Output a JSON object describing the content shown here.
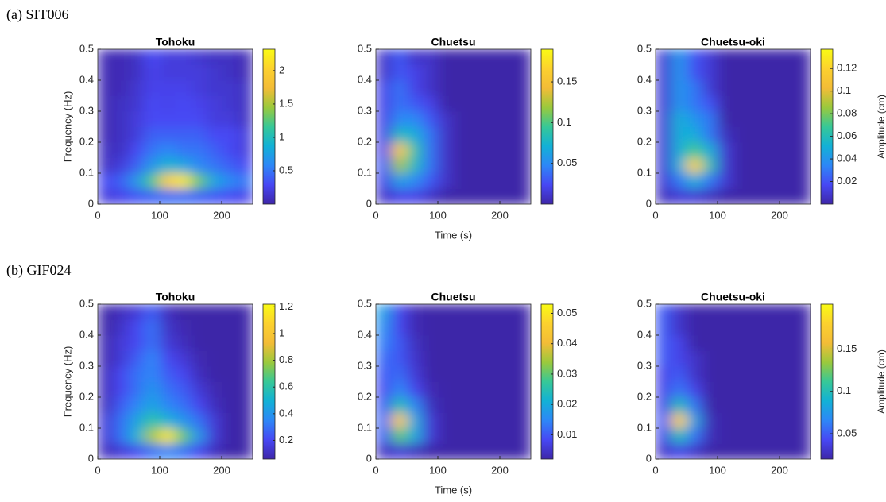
{
  "row_labels": [
    "(a)   SIT006",
    "(b)   GIF024"
  ],
  "chart_data": [
    {
      "type": "heatmap",
      "title": "Tohoku",
      "ylabel": "Frequency (Hz)",
      "x": [
        12.5,
        37.5,
        62.5,
        87.5,
        112.5,
        137.5,
        162.5,
        187.5,
        212.5,
        237.5
      ],
      "y": [
        0.025,
        0.075,
        0.125,
        0.175,
        0.225,
        0.275,
        0.325,
        0.375,
        0.425,
        0.475
      ],
      "z": [
        [
          0.2,
          0.25,
          0.35,
          0.4,
          0.45,
          0.45,
          0.4,
          0.35,
          0.3,
          0.25
        ],
        [
          0.3,
          0.4,
          0.7,
          1.2,
          2.0,
          2.2,
          1.3,
          0.8,
          0.6,
          0.5
        ],
        [
          0.1,
          0.2,
          0.4,
          0.7,
          0.9,
          0.8,
          0.6,
          0.5,
          0.4,
          0.3
        ],
        [
          0.1,
          0.1,
          0.3,
          0.5,
          0.6,
          0.5,
          0.5,
          0.4,
          0.3,
          0.2
        ],
        [
          0.05,
          0.1,
          0.2,
          0.4,
          0.4,
          0.4,
          0.4,
          0.3,
          0.3,
          0.2
        ],
        [
          0.05,
          0.1,
          0.2,
          0.3,
          0.3,
          0.3,
          0.3,
          0.2,
          0.2,
          0.1
        ],
        [
          0.05,
          0.1,
          0.15,
          0.3,
          0.25,
          0.3,
          0.25,
          0.2,
          0.15,
          0.1
        ],
        [
          0.05,
          0.05,
          0.15,
          0.25,
          0.25,
          0.25,
          0.2,
          0.15,
          0.15,
          0.1
        ],
        [
          0.05,
          0.05,
          0.1,
          0.25,
          0.2,
          0.2,
          0.2,
          0.15,
          0.1,
          0.05
        ],
        [
          0.05,
          0.05,
          0.1,
          0.3,
          0.2,
          0.2,
          0.15,
          0.1,
          0.1,
          0.05
        ]
      ],
      "xlim": [
        0,
        250
      ],
      "xticks": [
        0,
        100,
        200
      ],
      "ylim": [
        0,
        0.5
      ],
      "yticks": [
        0,
        0.1,
        0.2,
        0.3,
        0.4,
        0.5
      ],
      "zlim": [
        0,
        2.32
      ],
      "zticks": [
        0.5,
        1,
        1.5,
        2
      ]
    },
    {
      "type": "heatmap",
      "title": "Chuetsu",
      "xlabel": "Time (s)",
      "x": [
        12.5,
        37.5,
        62.5,
        87.5,
        112.5,
        137.5,
        162.5,
        187.5,
        212.5,
        237.5
      ],
      "y": [
        0.025,
        0.075,
        0.125,
        0.175,
        0.225,
        0.275,
        0.325,
        0.375,
        0.425,
        0.475
      ],
      "z": [
        [
          0.01,
          0.02,
          0.02,
          0.01,
          0,
          0,
          0,
          0,
          0,
          0
        ],
        [
          0.02,
          0.06,
          0.05,
          0.03,
          0.01,
          0,
          0,
          0,
          0,
          0
        ],
        [
          0.03,
          0.12,
          0.08,
          0.04,
          0.01,
          0,
          0,
          0,
          0,
          0
        ],
        [
          0.02,
          0.16,
          0.09,
          0.04,
          0.01,
          0,
          0,
          0,
          0,
          0
        ],
        [
          0.02,
          0.08,
          0.07,
          0.04,
          0.01,
          0,
          0,
          0,
          0,
          0
        ],
        [
          0.02,
          0.05,
          0.05,
          0.03,
          0.01,
          0,
          0,
          0,
          0,
          0
        ],
        [
          0.02,
          0.04,
          0.03,
          0.02,
          0,
          0,
          0,
          0,
          0,
          0
        ],
        [
          0.02,
          0.04,
          0.02,
          0.01,
          0,
          0,
          0,
          0,
          0,
          0
        ],
        [
          0.01,
          0.03,
          0.02,
          0.01,
          0,
          0,
          0,
          0,
          0,
          0
        ],
        [
          0.01,
          0.03,
          0.01,
          0.01,
          0,
          0,
          0,
          0,
          0,
          0
        ]
      ],
      "xlim": [
        0,
        250
      ],
      "xticks": [
        0,
        100,
        200
      ],
      "ylim": [
        0,
        0.5
      ],
      "yticks": [
        0,
        0.1,
        0.2,
        0.3,
        0.4,
        0.5
      ],
      "zlim": [
        0,
        0.19
      ],
      "zticks": [
        0.05,
        0.1,
        0.15
      ]
    },
    {
      "type": "heatmap",
      "title": "Chuetsu-oki",
      "zlabel": "Amplitude (cm)",
      "x": [
        12.5,
        37.5,
        62.5,
        87.5,
        112.5,
        137.5,
        162.5,
        187.5,
        212.5,
        237.5
      ],
      "y": [
        0.025,
        0.075,
        0.125,
        0.175,
        0.225,
        0.275,
        0.325,
        0.375,
        0.425,
        0.475
      ],
      "z": [
        [
          0.005,
          0.01,
          0.01,
          0.005,
          0,
          0,
          0,
          0,
          0,
          0
        ],
        [
          0.01,
          0.03,
          0.05,
          0.03,
          0.01,
          0,
          0,
          0,
          0,
          0
        ],
        [
          0.01,
          0.05,
          0.12,
          0.06,
          0.01,
          0,
          0,
          0,
          0,
          0
        ],
        [
          0.01,
          0.05,
          0.07,
          0.05,
          0.01,
          0,
          0,
          0,
          0,
          0
        ],
        [
          0.01,
          0.05,
          0.05,
          0.03,
          0.005,
          0,
          0,
          0,
          0,
          0
        ],
        [
          0.01,
          0.05,
          0.04,
          0.03,
          0,
          0,
          0,
          0,
          0,
          0
        ],
        [
          0.01,
          0.04,
          0.03,
          0.02,
          0,
          0,
          0,
          0,
          0,
          0
        ],
        [
          0.01,
          0.04,
          0.03,
          0.01,
          0,
          0,
          0,
          0,
          0,
          0
        ],
        [
          0.01,
          0.04,
          0.02,
          0.01,
          0,
          0,
          0,
          0,
          0,
          0
        ],
        [
          0.01,
          0.04,
          0.02,
          0.01,
          0,
          0,
          0,
          0,
          0,
          0
        ]
      ],
      "xlim": [
        0,
        250
      ],
      "xticks": [
        0,
        100,
        200
      ],
      "ylim": [
        0,
        0.5
      ],
      "yticks": [
        0,
        0.1,
        0.2,
        0.3,
        0.4,
        0.5
      ],
      "zlim": [
        0,
        0.137
      ],
      "zticks": [
        0.02,
        0.04,
        0.06,
        0.08,
        0.1,
        0.12
      ]
    },
    {
      "type": "heatmap",
      "title": "Tohoku",
      "ylabel": "Frequency (Hz)",
      "x": [
        12.5,
        37.5,
        62.5,
        87.5,
        112.5,
        137.5,
        162.5,
        187.5,
        212.5,
        237.5
      ],
      "y": [
        0.025,
        0.075,
        0.125,
        0.175,
        0.225,
        0.275,
        0.325,
        0.375,
        0.425,
        0.475
      ],
      "z": [
        [
          0.1,
          0.15,
          0.2,
          0.3,
          0.35,
          0.3,
          0.2,
          0.1,
          0.06,
          0.06
        ],
        [
          0.15,
          0.3,
          0.5,
          0.8,
          1.15,
          0.7,
          0.4,
          0.15,
          0.06,
          0.06
        ],
        [
          0.15,
          0.3,
          0.45,
          0.6,
          0.5,
          0.4,
          0.3,
          0.15,
          0.06,
          0.06
        ],
        [
          0.1,
          0.25,
          0.35,
          0.45,
          0.35,
          0.3,
          0.2,
          0.1,
          0.06,
          0.06
        ],
        [
          0.1,
          0.2,
          0.3,
          0.4,
          0.3,
          0.25,
          0.15,
          0.08,
          0.06,
          0.06
        ],
        [
          0.1,
          0.2,
          0.3,
          0.35,
          0.25,
          0.2,
          0.1,
          0.06,
          0.06,
          0.06
        ],
        [
          0.08,
          0.15,
          0.25,
          0.35,
          0.2,
          0.15,
          0.08,
          0.06,
          0.06,
          0.06
        ],
        [
          0.08,
          0.15,
          0.2,
          0.3,
          0.15,
          0.1,
          0.06,
          0.06,
          0.06,
          0.06
        ],
        [
          0.06,
          0.12,
          0.2,
          0.3,
          0.12,
          0.08,
          0.06,
          0.06,
          0.06,
          0.06
        ],
        [
          0.06,
          0.1,
          0.15,
          0.25,
          0.1,
          0.06,
          0.06,
          0.06,
          0.06,
          0.06
        ]
      ],
      "xlim": [
        0,
        250
      ],
      "xticks": [
        0,
        100,
        200
      ],
      "ylim": [
        0,
        0.5
      ],
      "yticks": [
        0,
        0.1,
        0.2,
        0.3,
        0.4,
        0.5
      ],
      "zlim": [
        0.06,
        1.22
      ],
      "zticks": [
        0.2,
        0.4,
        0.6,
        0.8,
        1,
        1.2
      ]
    },
    {
      "type": "heatmap",
      "title": "Chuetsu",
      "xlabel": "Time (s)",
      "x": [
        12.5,
        37.5,
        62.5,
        87.5,
        112.5,
        137.5,
        162.5,
        187.5,
        212.5,
        237.5
      ],
      "y": [
        0.025,
        0.075,
        0.125,
        0.175,
        0.225,
        0.275,
        0.325,
        0.375,
        0.425,
        0.475
      ],
      "z": [
        [
          0.004,
          0.006,
          0.004,
          0.002,
          0.002,
          0.002,
          0.002,
          0.002,
          0.002,
          0.002
        ],
        [
          0.01,
          0.03,
          0.02,
          0.006,
          0.002,
          0.002,
          0.002,
          0.002,
          0.002,
          0.002
        ],
        [
          0.012,
          0.045,
          0.02,
          0.006,
          0.002,
          0.002,
          0.002,
          0.002,
          0.002,
          0.002
        ],
        [
          0.01,
          0.025,
          0.015,
          0.004,
          0.002,
          0.002,
          0.002,
          0.002,
          0.002,
          0.002
        ],
        [
          0.008,
          0.015,
          0.008,
          0.003,
          0.002,
          0.002,
          0.002,
          0.002,
          0.002,
          0.002
        ],
        [
          0.01,
          0.012,
          0.006,
          0.002,
          0.002,
          0.002,
          0.002,
          0.002,
          0.002,
          0.002
        ],
        [
          0.012,
          0.01,
          0.005,
          0.002,
          0.002,
          0.002,
          0.002,
          0.002,
          0.002,
          0.002
        ],
        [
          0.014,
          0.01,
          0.004,
          0.002,
          0.002,
          0.002,
          0.002,
          0.002,
          0.002,
          0.002
        ],
        [
          0.016,
          0.008,
          0.003,
          0.002,
          0.002,
          0.002,
          0.002,
          0.002,
          0.002,
          0.002
        ],
        [
          0.018,
          0.008,
          0.003,
          0.002,
          0.002,
          0.002,
          0.002,
          0.002,
          0.002,
          0.002
        ]
      ],
      "xlim": [
        0,
        250
      ],
      "xticks": [
        0,
        100,
        200
      ],
      "ylim": [
        0,
        0.5
      ],
      "yticks": [
        0,
        0.1,
        0.2,
        0.3,
        0.4,
        0.5
      ],
      "zlim": [
        0.002,
        0.053
      ],
      "zticks": [
        0.01,
        0.02,
        0.03,
        0.04,
        0.05
      ]
    },
    {
      "type": "heatmap",
      "title": "Chuetsu-oki",
      "zlabel": "Amplitude (cm)",
      "x": [
        12.5,
        37.5,
        62.5,
        87.5,
        112.5,
        137.5,
        162.5,
        187.5,
        212.5,
        237.5
      ],
      "y": [
        0.025,
        0.075,
        0.125,
        0.175,
        0.225,
        0.275,
        0.325,
        0.375,
        0.425,
        0.475
      ],
      "z": [
        [
          0.03,
          0.04,
          0.03,
          0.02,
          0.02,
          0.02,
          0.02,
          0.02,
          0.02,
          0.02
        ],
        [
          0.04,
          0.1,
          0.06,
          0.025,
          0.02,
          0.02,
          0.02,
          0.02,
          0.02,
          0.02
        ],
        [
          0.05,
          0.18,
          0.08,
          0.025,
          0.02,
          0.02,
          0.02,
          0.02,
          0.02,
          0.02
        ],
        [
          0.04,
          0.1,
          0.06,
          0.02,
          0.02,
          0.02,
          0.02,
          0.02,
          0.02,
          0.02
        ],
        [
          0.04,
          0.06,
          0.04,
          0.02,
          0.02,
          0.02,
          0.02,
          0.02,
          0.02,
          0.02
        ],
        [
          0.04,
          0.05,
          0.03,
          0.02,
          0.02,
          0.02,
          0.02,
          0.02,
          0.02,
          0.02
        ],
        [
          0.05,
          0.04,
          0.03,
          0.02,
          0.02,
          0.02,
          0.02,
          0.02,
          0.02,
          0.02
        ],
        [
          0.05,
          0.04,
          0.02,
          0.02,
          0.02,
          0.02,
          0.02,
          0.02,
          0.02,
          0.02
        ],
        [
          0.05,
          0.03,
          0.02,
          0.02,
          0.02,
          0.02,
          0.02,
          0.02,
          0.02,
          0.02
        ],
        [
          0.05,
          0.03,
          0.02,
          0.02,
          0.02,
          0.02,
          0.02,
          0.02,
          0.02,
          0.02
        ]
      ],
      "xlim": [
        0,
        250
      ],
      "xticks": [
        0,
        100,
        200
      ],
      "ylim": [
        0,
        0.5
      ],
      "yticks": [
        0,
        0.1,
        0.2,
        0.3,
        0.4,
        0.5
      ],
      "zlim": [
        0.02,
        0.203
      ],
      "zticks": [
        0.05,
        0.1,
        0.15
      ]
    }
  ]
}
